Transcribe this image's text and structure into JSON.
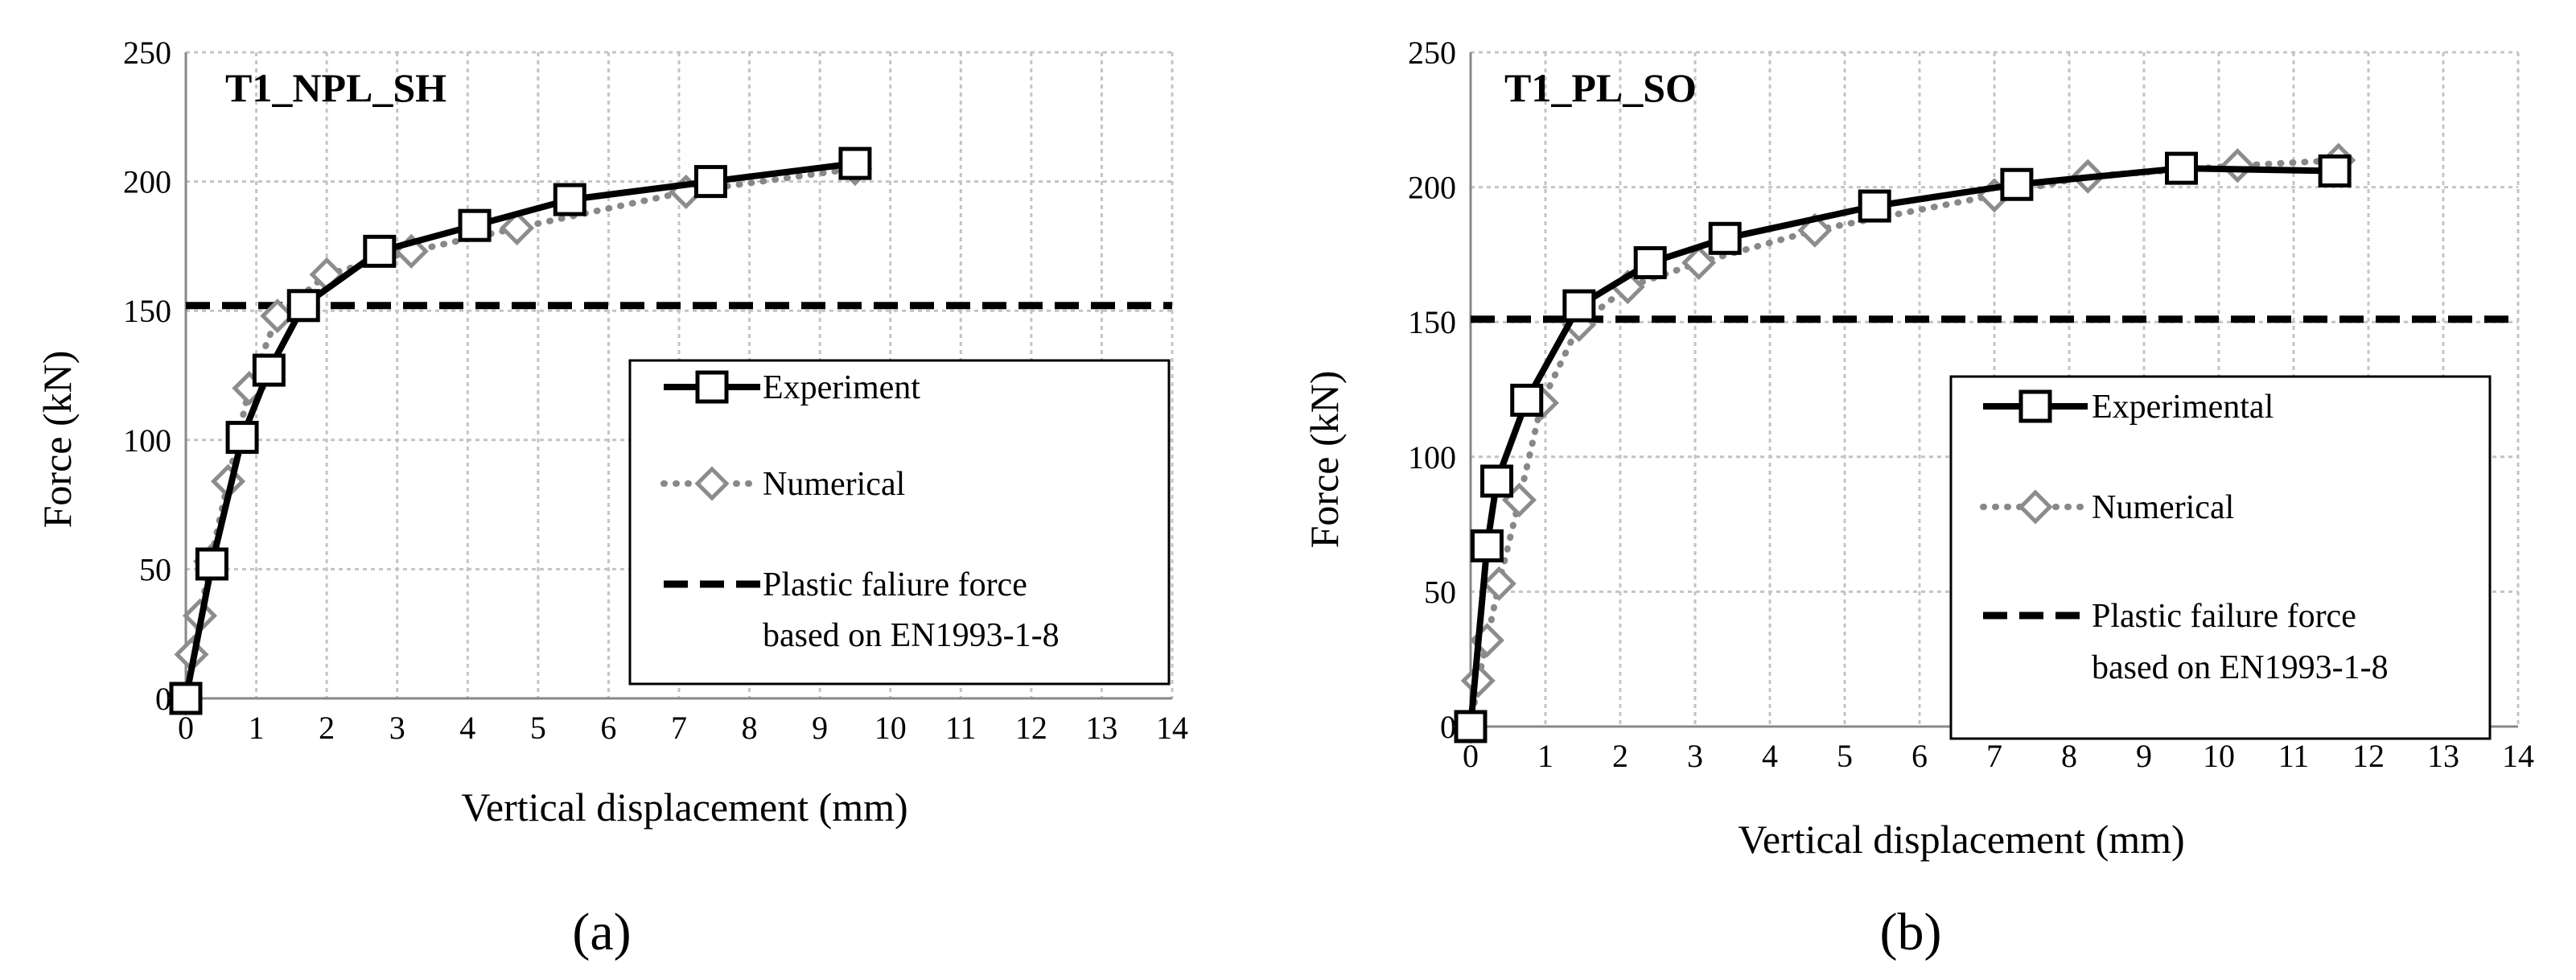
{
  "chart_data": [
    {
      "type": "line",
      "title": "T1_NPL_SH",
      "xlabel": "Vertical displacement (mm)",
      "ylabel": "Force (kN)",
      "caption": "(a)",
      "xlim": [
        0,
        14
      ],
      "ylim": [
        0,
        250
      ],
      "xticks": [
        "0",
        "1",
        "2",
        "3",
        "4",
        "5",
        "6",
        "7",
        "8",
        "9",
        "10",
        "11",
        "12",
        "13",
        "14"
      ],
      "yticks": [
        "0",
        "50",
        "100",
        "150",
        "200",
        "250"
      ],
      "legend_position": "lower-right",
      "series": [
        {
          "name": "Experiment",
          "style": "solid-square",
          "color": "#000000",
          "x": [
            0,
            0.37,
            0.8,
            1.18,
            1.67,
            2.75,
            4.1,
            5.45,
            7.45,
            9.5
          ],
          "y": [
            0,
            52,
            101,
            127,
            152,
            173,
            183,
            193,
            200,
            207
          ]
        },
        {
          "name": "Numerical",
          "style": "dotted-diamond",
          "color": "#888888",
          "x": [
            0,
            0.08,
            0.2,
            0.35,
            0.6,
            0.9,
            1.3,
            2.0,
            3.2,
            4.7,
            7.1,
            9.5
          ],
          "y": [
            0,
            17,
            32,
            53,
            84,
            120,
            148,
            164,
            173,
            182,
            196,
            205
          ]
        },
        {
          "name": "Plastic faliure force based on EN1993-1-8",
          "legend_line1": "Plastic faliure force",
          "legend_line2": "based on EN1993-1-8",
          "style": "dashed",
          "color": "#000000",
          "x": [
            0,
            14
          ],
          "y": [
            152,
            152
          ]
        }
      ]
    },
    {
      "type": "line",
      "title": "T1_PL_SO",
      "xlabel": "Vertical displacement (mm)",
      "ylabel": "Force (kN)",
      "caption": "(b)",
      "xlim": [
        0,
        14
      ],
      "ylim": [
        0,
        250
      ],
      "xticks": [
        "0",
        "1",
        "2",
        "3",
        "4",
        "5",
        "6",
        "7",
        "8",
        "9",
        "10",
        "11",
        "12",
        "13",
        "14"
      ],
      "yticks": [
        "0",
        "50",
        "100",
        "150",
        "200",
        "250"
      ],
      "legend_position": "lower-right",
      "series": [
        {
          "name": "Experimental",
          "style": "solid-square",
          "color": "#000000",
          "x": [
            0,
            0.22,
            0.35,
            0.75,
            1.45,
            2.4,
            3.4,
            5.4,
            7.3,
            9.5,
            11.55
          ],
          "y": [
            0,
            67,
            91,
            121,
            156,
            172,
            181,
            193,
            201,
            207,
            206
          ]
        },
        {
          "name": "Numerical",
          "style": "dotted-diamond",
          "color": "#888888",
          "x": [
            0,
            0.1,
            0.22,
            0.38,
            0.65,
            0.95,
            1.45,
            2.1,
            3.05,
            4.6,
            7.0,
            8.25,
            10.25,
            11.6
          ],
          "y": [
            0,
            17,
            32,
            53,
            84,
            120,
            149,
            163,
            172,
            184,
            197,
            204,
            208,
            210
          ]
        },
        {
          "name": "Plastic failure force based on EN1993-1-8",
          "legend_line1": "Plastic failure force",
          "legend_line2": "based on EN1993-1-8",
          "style": "dashed",
          "color": "#000000",
          "x": [
            0,
            14
          ],
          "y": [
            151,
            151
          ]
        }
      ]
    }
  ]
}
